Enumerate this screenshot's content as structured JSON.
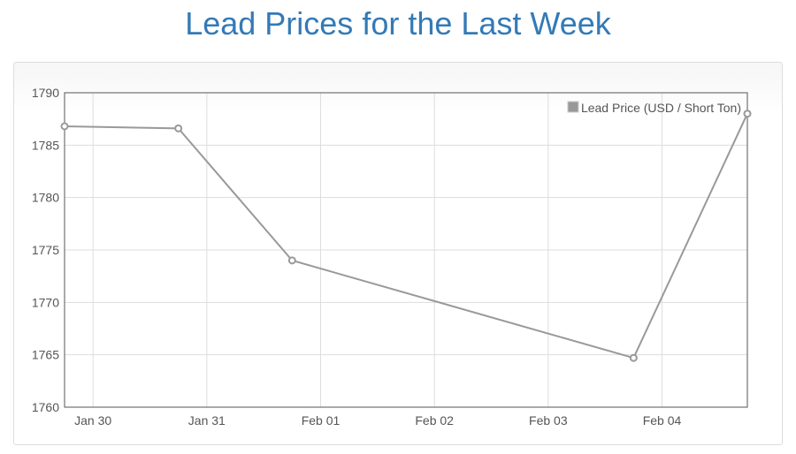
{
  "page": {
    "title": "Lead Prices for the Last Week"
  },
  "chart_data": {
    "type": "line",
    "title": "Lead Prices for the Last Week",
    "xlabel": "",
    "ylabel": "",
    "x_tick_labels": [
      "Jan 30",
      "Jan 31",
      "Feb 01",
      "Feb 02",
      "Feb 03",
      "Feb 04"
    ],
    "y_tick_labels": [
      "1760",
      "1765",
      "1770",
      "1775",
      "1780",
      "1785",
      "1790"
    ],
    "ylim": [
      1760,
      1790
    ],
    "xlim_days": [
      -0.25,
      5.75
    ],
    "grid": true,
    "legend_position": "top-right",
    "series": [
      {
        "name": "Lead Price (USD / Short Ton)",
        "color": "#999999",
        "points": [
          {
            "date": "Jan 29",
            "x_days_from_jan30": -0.25,
            "y": 1786.8
          },
          {
            "date": "Jan 30",
            "x_days_from_jan30": 0.75,
            "y": 1786.6
          },
          {
            "date": "Jan 31",
            "x_days_from_jan30": 1.75,
            "y": 1774.0
          },
          {
            "date": "Feb 03",
            "x_days_from_jan30": 4.75,
            "y": 1764.7
          },
          {
            "date": "Feb 04",
            "x_days_from_jan30": 5.75,
            "y": 1788.0
          }
        ]
      }
    ]
  }
}
